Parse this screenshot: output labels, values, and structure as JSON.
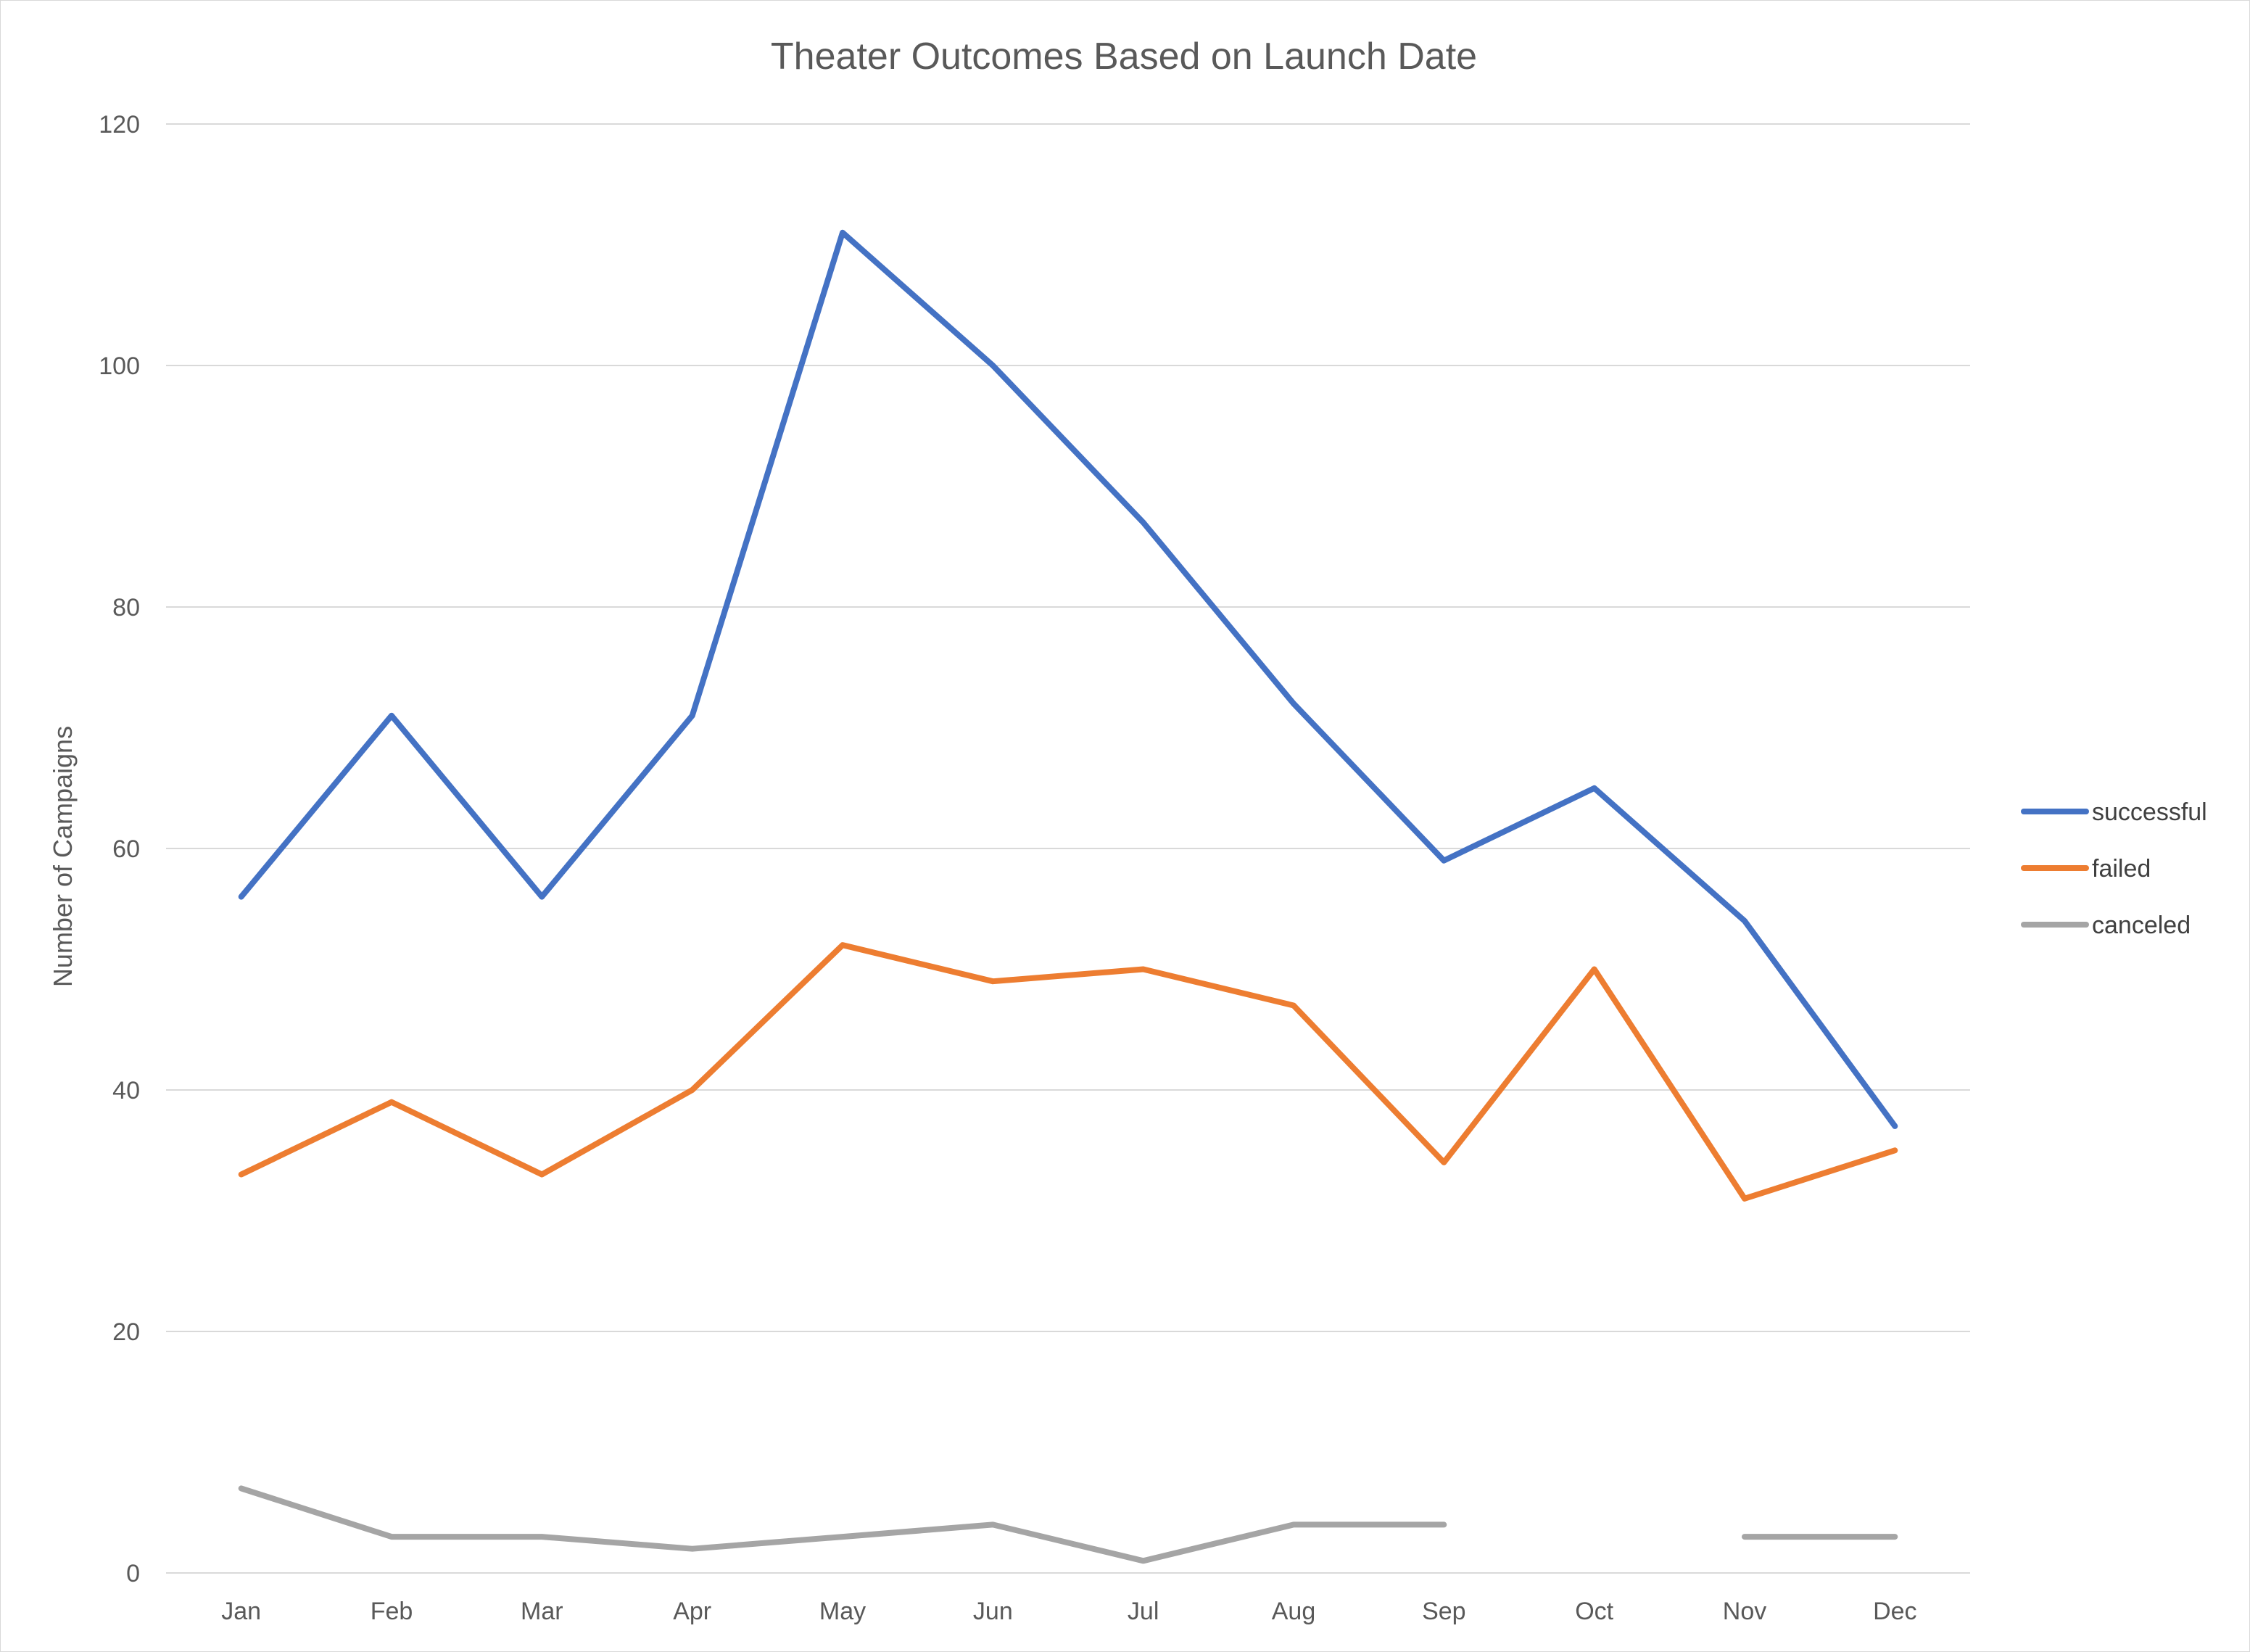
{
  "chart_data": {
    "type": "line",
    "title": "Theater Outcomes Based on Launch Date",
    "xlabel": "",
    "ylabel": "Number of Campaigns",
    "categories": [
      "Jan",
      "Feb",
      "Mar",
      "Apr",
      "May",
      "Jun",
      "Jul",
      "Aug",
      "Sep",
      "Oct",
      "Nov",
      "Dec"
    ],
    "ylim": [
      0,
      120
    ],
    "yticks": [
      0,
      20,
      40,
      60,
      80,
      100,
      120
    ],
    "grid": true,
    "legend_position": "right",
    "series": [
      {
        "name": "successful",
        "color": "#4472C4",
        "values": [
          56,
          71,
          56,
          71,
          111,
          100,
          87,
          72,
          59,
          65,
          54,
          37
        ]
      },
      {
        "name": "failed",
        "color": "#ED7D31",
        "values": [
          33,
          39,
          33,
          40,
          52,
          49,
          50,
          47,
          34,
          50,
          31,
          35
        ]
      },
      {
        "name": "canceled",
        "color": "#A5A5A5",
        "values": [
          7,
          3,
          3,
          2,
          3,
          4,
          1,
          4,
          4,
          null,
          3,
          3
        ]
      }
    ]
  }
}
